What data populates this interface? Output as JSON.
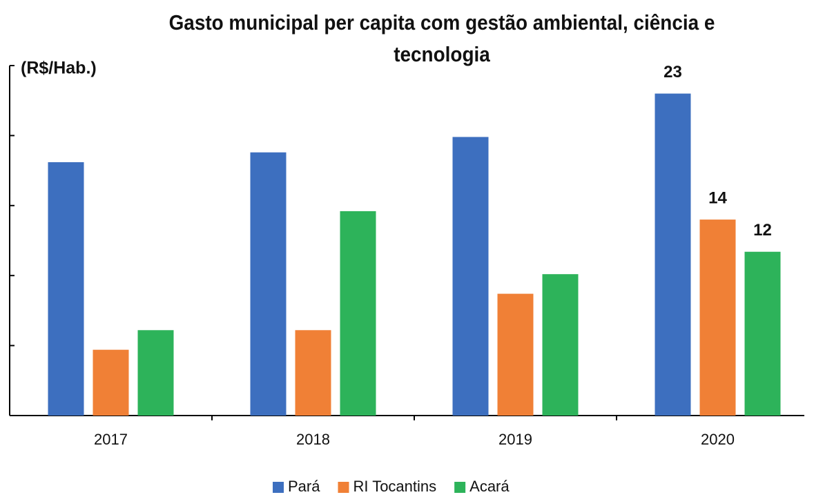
{
  "chart_data": {
    "type": "bar",
    "title": "Gasto municipal per capita com gestão ambiental, ciência e tecnologia",
    "ylabel": "(R$/Hab.)",
    "categories": [
      "2017",
      "2018",
      "2019",
      "2020"
    ],
    "series": [
      {
        "name": "Pará",
        "color": "#3d6fbf",
        "values": [
          18.1,
          18.8,
          19.9,
          23
        ],
        "value_labels": [
          null,
          null,
          null,
          "23"
        ]
      },
      {
        "name": "RI Tocantins",
        "color": "#f08036",
        "values": [
          4.7,
          6.1,
          8.7,
          14
        ],
        "value_labels": [
          null,
          null,
          null,
          "14"
        ]
      },
      {
        "name": "Acará",
        "color": "#2db35a",
        "values": [
          6.1,
          14.6,
          10.1,
          11.7
        ],
        "value_labels": [
          null,
          null,
          null,
          "12"
        ]
      }
    ],
    "ylim": [
      0,
      25
    ],
    "yticks": [
      0,
      5,
      10,
      15,
      20,
      25
    ],
    "legend": "bottom"
  }
}
